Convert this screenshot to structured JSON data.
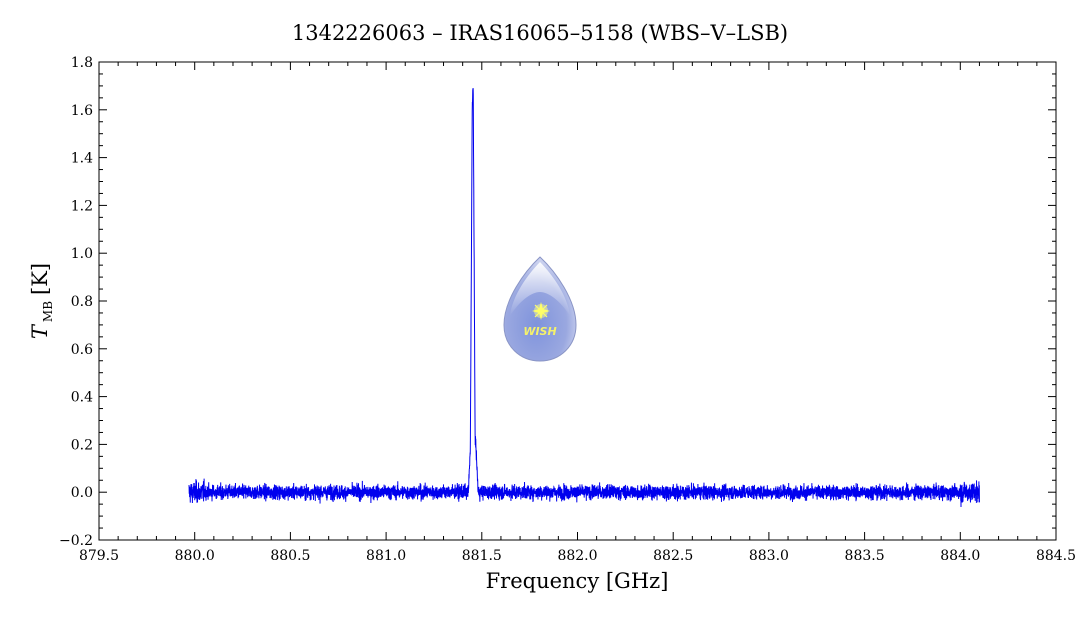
{
  "chart_data": {
    "type": "line",
    "title": "1342226063 – IRAS16065–5158 (WBS–V–LSB)",
    "xlabel": "Frequency [GHz]",
    "ylabel": {
      "symbol": "T",
      "subscript": "MB",
      "unit": "[K]"
    },
    "xlim": [
      879.5,
      884.5
    ],
    "ylim": [
      -0.2,
      1.8
    ],
    "x_ticks": [
      "879.5",
      "880.0",
      "880.5",
      "881.0",
      "881.5",
      "882.0",
      "882.5",
      "883.0",
      "883.5",
      "884.0",
      "884.5"
    ],
    "y_ticks": [
      "−0.2",
      "0.0",
      "0.2",
      "0.4",
      "0.6",
      "0.8",
      "1.0",
      "1.2",
      "1.4",
      "1.6",
      "1.8"
    ],
    "grid": false,
    "series": [
      {
        "color": "#0000ee",
        "x_range": [
          879.97,
          884.1
        ],
        "baseline": 0.0,
        "noise_rms": 0.025,
        "line_points": [
          [
            881.43,
            0.0
          ],
          [
            881.44,
            0.18
          ],
          [
            881.45,
            1.6
          ],
          [
            881.455,
            1.72
          ],
          [
            881.46,
            0.96
          ],
          [
            881.465,
            0.25
          ],
          [
            881.48,
            0.02
          ]
        ]
      }
    ]
  },
  "logo": {
    "text": "WISH",
    "colors": {
      "drop_top": "#c8d0ee",
      "drop_bottom": "#7e8fd8",
      "star": "#ffff66"
    }
  }
}
